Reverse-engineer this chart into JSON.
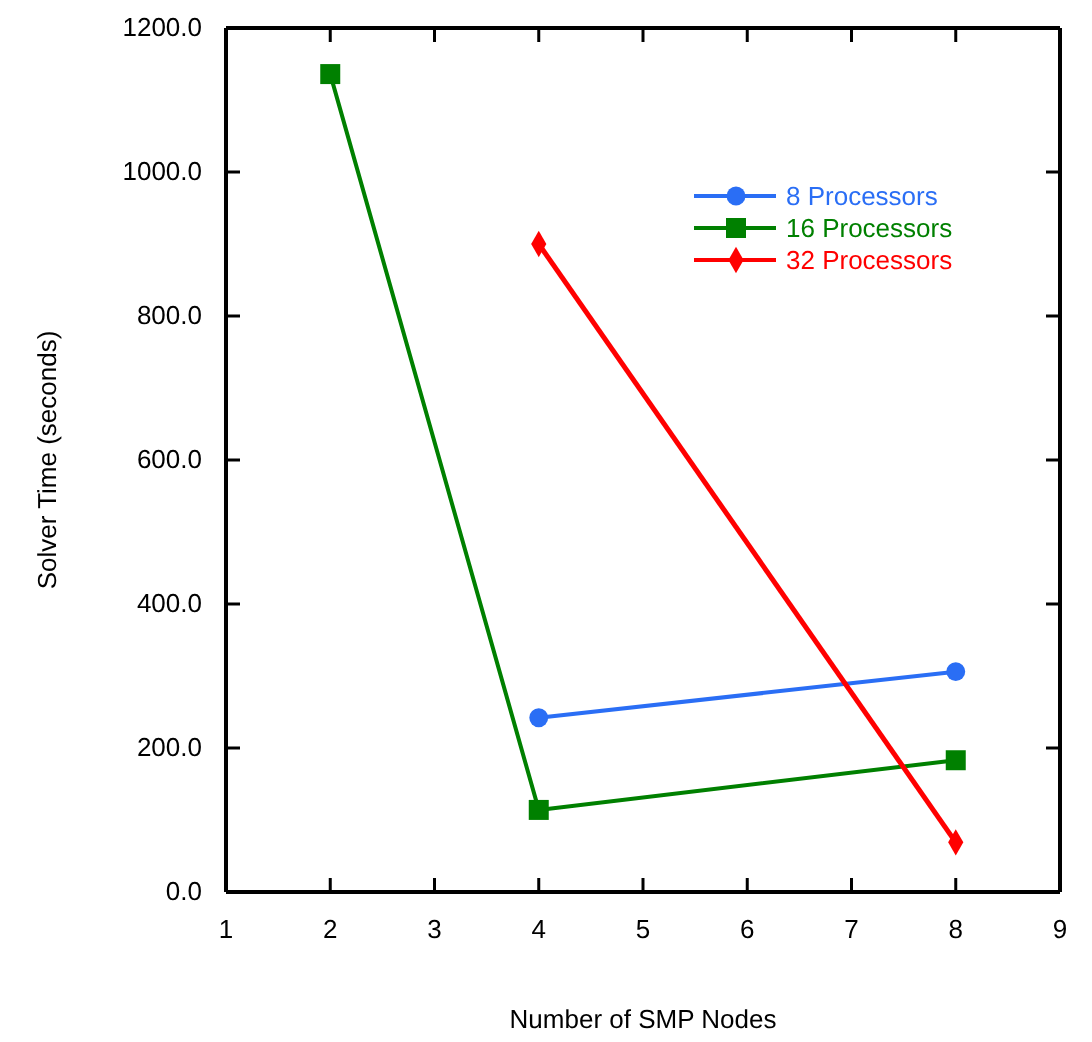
{
  "chart_data": {
    "type": "line",
    "xlabel": "Number of SMP Nodes",
    "ylabel": "Solver Time (seconds)",
    "xlim": [
      1,
      9
    ],
    "xticks": [
      1,
      2,
      3,
      4,
      5,
      6,
      7,
      8,
      9
    ],
    "ylim": [
      0,
      1200
    ],
    "yticks": [
      {
        "value": 0,
        "label": "0.0"
      },
      {
        "value": 200,
        "label": "200.0"
      },
      {
        "value": 400,
        "label": "400.0"
      },
      {
        "value": 600,
        "label": "600.0"
      },
      {
        "value": 800,
        "label": "800.0"
      },
      {
        "value": 1000,
        "label": "1000.0"
      },
      {
        "value": 1200,
        "label": "1200.0"
      }
    ],
    "grid": false,
    "legend": "top right",
    "series": [
      {
        "name": "8 Processors",
        "color": "#2a6ef5",
        "marker": "circle",
        "x": [
          4,
          8
        ],
        "values": [
          242,
          306
        ]
      },
      {
        "name": "16 Processors",
        "color": "#008000",
        "marker": "square",
        "x": [
          2,
          4,
          8
        ],
        "values": [
          1136,
          114,
          183
        ]
      },
      {
        "name": "32 Processors",
        "color": "#ff0000",
        "marker": "diamond",
        "x": [
          4,
          8
        ],
        "values": [
          900,
          69
        ]
      }
    ]
  }
}
